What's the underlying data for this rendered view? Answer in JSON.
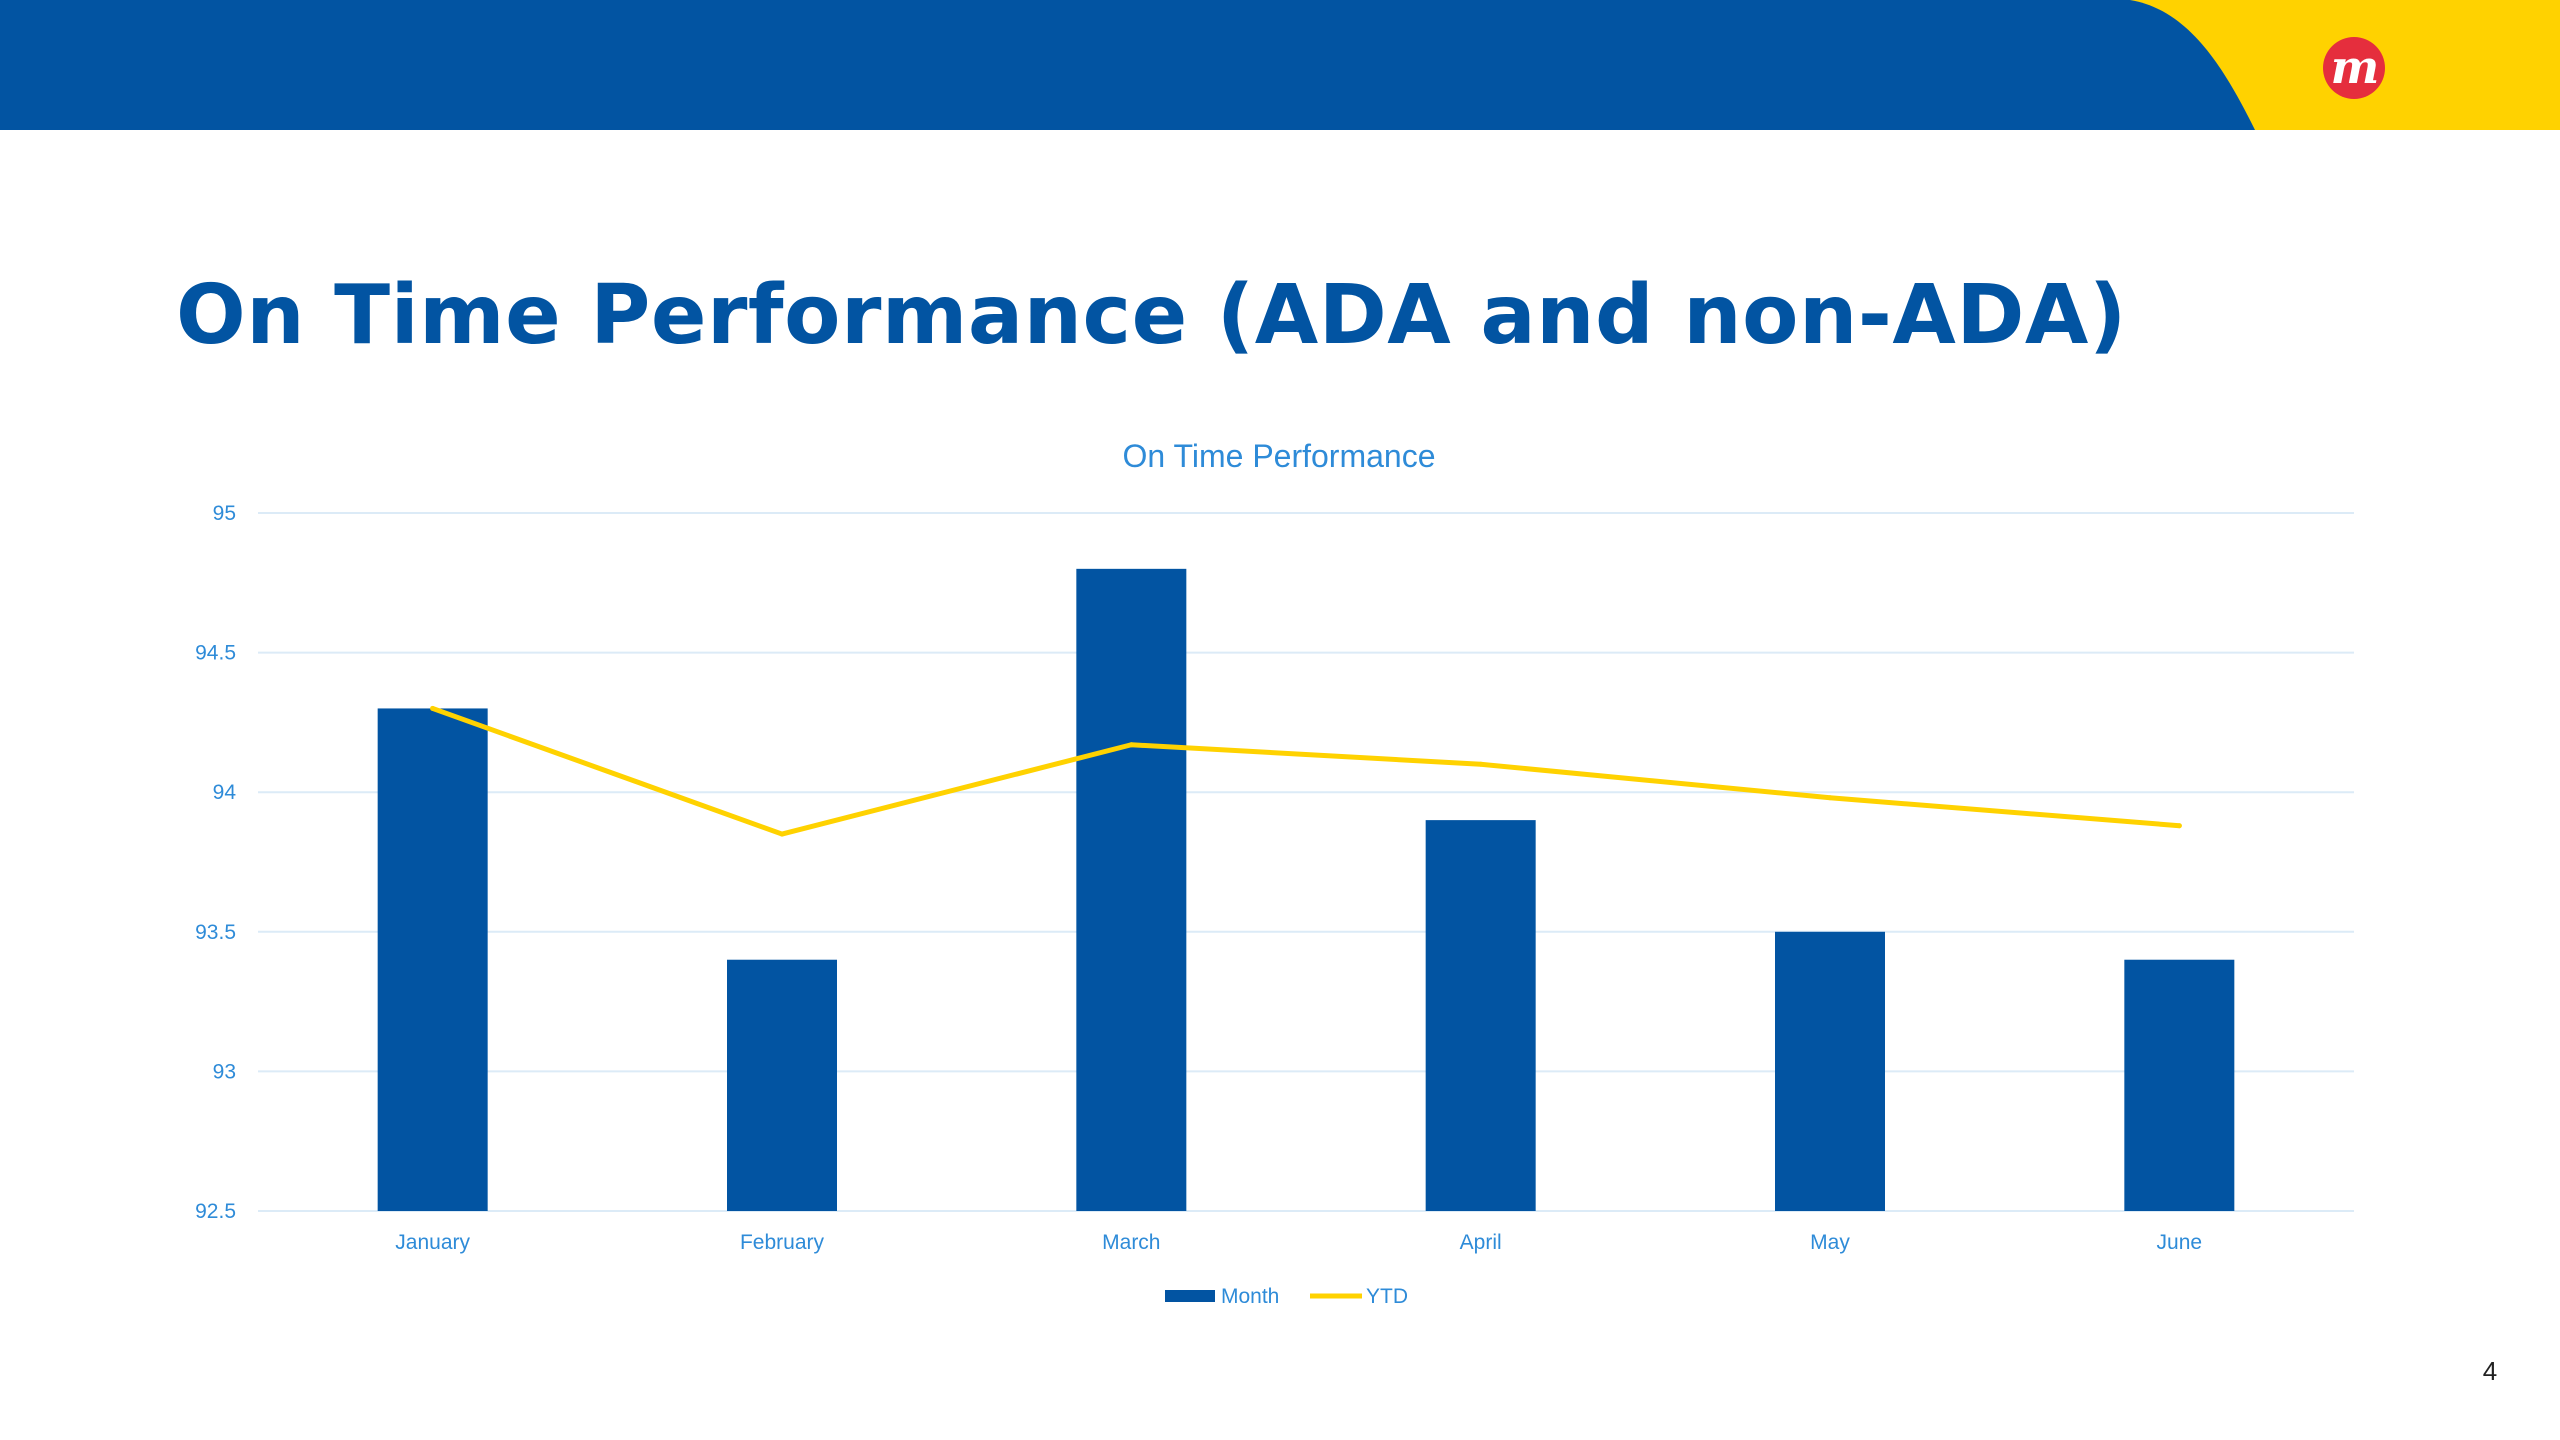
{
  "slide": {
    "title": "On Time Performance (ADA and non-ADA)",
    "page_number": "4"
  },
  "colors": {
    "brand_blue": "#0254A2",
    "brand_yellow": "#FFD200",
    "logo_red": "#E52E3D",
    "chart_text": "#2E8BD8",
    "grid": "#DCEBF7"
  },
  "logo": {
    "icon": "m-logo-icon",
    "letter": "m"
  },
  "chart_data": {
    "type": "bar",
    "title": "On Time Performance",
    "categories": [
      "January",
      "February",
      "March",
      "April",
      "May",
      "June"
    ],
    "series": [
      {
        "name": "Month",
        "type": "bar",
        "color": "#0254A2",
        "values": [
          94.3,
          93.4,
          94.8,
          93.9,
          93.5,
          93.4
        ]
      },
      {
        "name": "YTD",
        "type": "line",
        "color": "#FFD200",
        "values": [
          94.3,
          93.85,
          94.17,
          94.1,
          93.98,
          93.88
        ]
      }
    ],
    "ylim": [
      92.5,
      95
    ],
    "yticks": [
      "95",
      "94.5",
      "94",
      "93.5",
      "93",
      "92.5"
    ],
    "grid": true,
    "legend": "bottom-center"
  }
}
